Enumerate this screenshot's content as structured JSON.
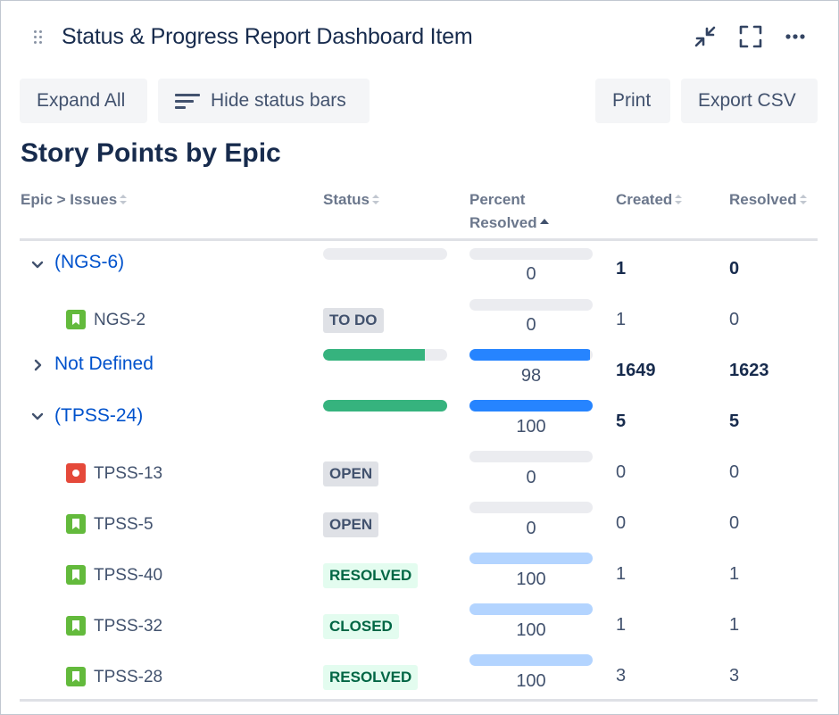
{
  "header": {
    "title": "Status & Progress Report Dashboard Item",
    "icons": [
      "drag-handle-icon",
      "minimize-icon",
      "fullscreen-icon",
      "more-icon"
    ]
  },
  "toolbar": {
    "expand_all": "Expand All",
    "hide_status_bars": "Hide status bars",
    "print": "Print",
    "export_csv": "Export CSV"
  },
  "section_title": "Story Points by Epic",
  "columns": {
    "epic_issues": "Epic > Issues",
    "status": "Status",
    "percent_line1": "Percent",
    "percent_line2": "Resolved",
    "created": "Created",
    "resolved": "Resolved"
  },
  "colors": {
    "link": "#0052cc",
    "status_green": "#36b37e",
    "progress_blue": "#2684ff",
    "progress_light": "#b3d4ff",
    "story_icon": "#63ba3c",
    "bug_icon": "#e5493a"
  },
  "rows": [
    {
      "type": "epic",
      "expanded": true,
      "label": "(NGS-6)",
      "status_fill": 0,
      "percent": "0",
      "percent_fill": 0,
      "created": "1",
      "resolved": "0"
    },
    {
      "type": "issue",
      "icon": "story-icon",
      "key": "NGS-2",
      "status": "TO DO",
      "percent": "0",
      "percent_fill": 0,
      "created": "1",
      "resolved": "0"
    },
    {
      "type": "epic",
      "expanded": false,
      "label": "Not Defined",
      "status_fill": 0.82,
      "percent": "98",
      "percent_fill": 0.98,
      "created": "1649",
      "resolved": "1623"
    },
    {
      "type": "epic",
      "expanded": true,
      "label": "(TPSS-24)",
      "status_fill": 1,
      "percent": "100",
      "percent_fill": 1,
      "created": "5",
      "resolved": "5"
    },
    {
      "type": "issue",
      "icon": "bug-icon",
      "key": "TPSS-13",
      "status": "OPEN",
      "percent": "0",
      "percent_fill": 0,
      "created": "0",
      "resolved": "0"
    },
    {
      "type": "issue",
      "icon": "story-icon",
      "key": "TPSS-5",
      "status": "OPEN",
      "percent": "0",
      "percent_fill": 0,
      "created": "0",
      "resolved": "0"
    },
    {
      "type": "issue",
      "icon": "story-icon",
      "key": "TPSS-40",
      "status": "RESOLVED",
      "percent": "100",
      "percent_fill": 1,
      "created": "1",
      "resolved": "1"
    },
    {
      "type": "issue",
      "icon": "story-icon",
      "key": "TPSS-32",
      "status": "CLOSED",
      "percent": "100",
      "percent_fill": 1,
      "created": "1",
      "resolved": "1"
    },
    {
      "type": "issue",
      "icon": "story-icon",
      "key": "TPSS-28",
      "status": "RESOLVED",
      "percent": "100",
      "percent_fill": 1,
      "created": "3",
      "resolved": "3"
    }
  ]
}
